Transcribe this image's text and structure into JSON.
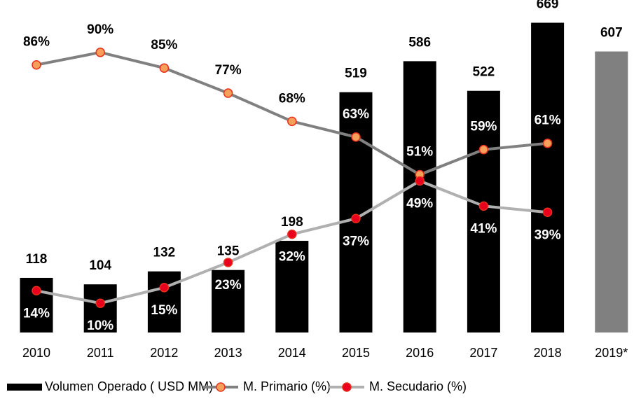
{
  "chart_data": {
    "type": "bar_line",
    "categories": [
      "2010",
      "2011",
      "2012",
      "2013",
      "2014",
      "2015",
      "2016",
      "2017",
      "2018",
      "2019*"
    ],
    "ylim": [
      0,
      700
    ],
    "y2lim": [
      0,
      100
    ],
    "series": [
      {
        "name": "Volumen Operado ( USD MM)",
        "type": "bar",
        "color": "#000000",
        "colors": [
          "#000000",
          "#000000",
          "#000000",
          "#000000",
          "#000000",
          "#000000",
          "#000000",
          "#000000",
          "#000000",
          "#808080"
        ],
        "values": [
          118,
          104,
          132,
          135,
          198,
          519,
          586,
          522,
          669,
          607
        ]
      },
      {
        "name": "M. Primario (%)",
        "type": "line",
        "axis": "y2",
        "color": "#808080",
        "marker_fill": "#f5a05a",
        "marker_stroke": "#e8301c",
        "values": [
          86,
          90,
          85,
          77,
          68,
          63,
          51,
          59,
          61,
          null
        ],
        "value_labels": [
          "86%",
          "90%",
          "85%",
          "77%",
          "68%",
          "63%",
          "51%",
          "59%",
          "61%",
          null
        ]
      },
      {
        "name": "M. Secudario (%)",
        "type": "line",
        "axis": "y2",
        "color": "#b0b0b0",
        "marker_fill": "#e8001c",
        "marker_stroke": "#e8301c",
        "values": [
          14,
          10,
          15,
          23,
          32,
          37,
          49,
          41,
          39,
          null
        ],
        "value_labels": [
          "14%",
          "10%",
          "15%",
          "23%",
          "32%",
          "37%",
          "49%",
          "41%",
          "39%",
          null
        ]
      }
    ]
  }
}
